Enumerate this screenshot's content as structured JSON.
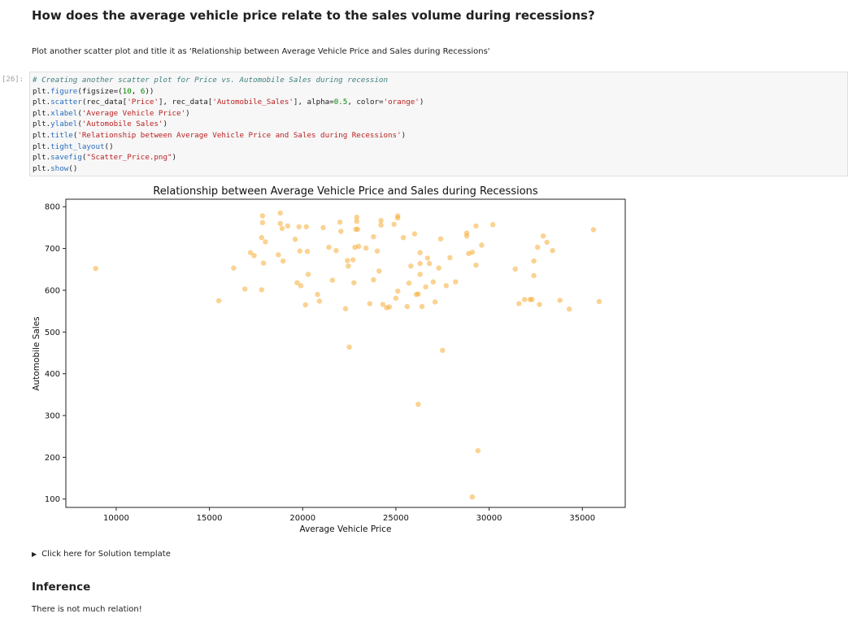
{
  "question": "How does the average vehicle price relate to the sales volume during recessions?",
  "instruction": "Plot another scatter plot and title it as 'Relationship between Average Vehicle Price and Sales during Recessions'",
  "cell_prompt": "[26]:",
  "code_lines": [
    [
      [
        "c-com",
        "# Creating another scatter plot for Price vs. Automobile Sales during recession"
      ]
    ],
    [
      [
        "",
        "plt."
      ],
      [
        "c-fn",
        "figure"
      ],
      [
        "",
        "(figsize=("
      ],
      [
        "c-num",
        "10"
      ],
      [
        "",
        ", "
      ],
      [
        "c-num",
        "6"
      ],
      [
        "",
        "))"
      ]
    ],
    [
      [
        "",
        "plt."
      ],
      [
        "c-fn",
        "scatter"
      ],
      [
        "",
        "(rec_data["
      ],
      [
        "c-str",
        "'Price'"
      ],
      [
        "",
        "], rec_data["
      ],
      [
        "c-str",
        "'Automobile_Sales'"
      ],
      [
        "",
        "], alpha="
      ],
      [
        "c-num",
        "0.5"
      ],
      [
        "",
        ", color="
      ],
      [
        "c-str",
        "'orange'"
      ],
      [
        "",
        ")"
      ]
    ],
    [
      [
        "",
        "plt."
      ],
      [
        "c-fn",
        "xlabel"
      ],
      [
        "",
        "("
      ],
      [
        "c-str",
        "'Average Vehicle Price'"
      ],
      [
        "",
        ")"
      ]
    ],
    [
      [
        "",
        "plt."
      ],
      [
        "c-fn",
        "ylabel"
      ],
      [
        "",
        "("
      ],
      [
        "c-str",
        "'Automobile Sales'"
      ],
      [
        "",
        ")"
      ]
    ],
    [
      [
        "",
        "plt."
      ],
      [
        "c-fn",
        "title"
      ],
      [
        "",
        "("
      ],
      [
        "c-str",
        "'Relationship between Average Vehicle Price and Sales during Recessions'"
      ],
      [
        "",
        ")"
      ]
    ],
    [
      [
        "",
        "plt."
      ],
      [
        "c-fn",
        "tight_layout"
      ],
      [
        "",
        "()"
      ]
    ],
    [
      [
        "",
        "plt."
      ],
      [
        "c-fn",
        "savefig"
      ],
      [
        "",
        "("
      ],
      [
        "c-str",
        "\"Scatter_Price.png\""
      ],
      [
        "",
        ")"
      ]
    ],
    [
      [
        "",
        "plt."
      ],
      [
        "c-fn",
        "show"
      ],
      [
        "",
        "()"
      ]
    ]
  ],
  "chart_data": {
    "type": "scatter",
    "title": "Relationship between Average Vehicle Price and Sales during Recessions",
    "xlabel": "Average Vehicle Price",
    "ylabel": "Automobile Sales",
    "xlim": [
      7300,
      37300
    ],
    "ylim": [
      80,
      818
    ],
    "x_ticks": [
      10000,
      15000,
      20000,
      25000,
      30000,
      35000
    ],
    "y_ticks": [
      100,
      200,
      300,
      400,
      500,
      600,
      700,
      800
    ],
    "color": "#f5a623",
    "alpha": 0.5,
    "points": [
      [
        8900,
        652
      ],
      [
        15500,
        575
      ],
      [
        16300,
        653
      ],
      [
        16900,
        603
      ],
      [
        17200,
        690
      ],
      [
        17400,
        683
      ],
      [
        17800,
        726
      ],
      [
        17800,
        601
      ],
      [
        17850,
        778
      ],
      [
        17850,
        762
      ],
      [
        17900,
        665
      ],
      [
        18000,
        716
      ],
      [
        18700,
        685
      ],
      [
        18800,
        785
      ],
      [
        18800,
        760
      ],
      [
        18900,
        748
      ],
      [
        18950,
        670
      ],
      [
        19200,
        754
      ],
      [
        19600,
        722
      ],
      [
        19700,
        618
      ],
      [
        19900,
        611
      ],
      [
        19800,
        752
      ],
      [
        19850,
        694
      ],
      [
        20150,
        565
      ],
      [
        20200,
        752
      ],
      [
        20250,
        693
      ],
      [
        20300,
        638
      ],
      [
        20800,
        590
      ],
      [
        20900,
        574
      ],
      [
        21100,
        750
      ],
      [
        21400,
        703
      ],
      [
        21600,
        624
      ],
      [
        21800,
        695
      ],
      [
        22000,
        763
      ],
      [
        22050,
        741
      ],
      [
        22300,
        556
      ],
      [
        22400,
        671
      ],
      [
        22450,
        658
      ],
      [
        22500,
        464
      ],
      [
        22700,
        673
      ],
      [
        22750,
        618
      ],
      [
        22800,
        703
      ],
      [
        22900,
        775
      ],
      [
        22900,
        765
      ],
      [
        22850,
        746
      ],
      [
        22950,
        746
      ],
      [
        23000,
        705
      ],
      [
        23400,
        701
      ],
      [
        23600,
        568
      ],
      [
        23800,
        728
      ],
      [
        23800,
        625
      ],
      [
        24000,
        694
      ],
      [
        24200,
        767
      ],
      [
        24200,
        756
      ],
      [
        24100,
        646
      ],
      [
        24300,
        566
      ],
      [
        24500,
        558
      ],
      [
        24650,
        560
      ],
      [
        24900,
        758
      ],
      [
        25100,
        778
      ],
      [
        25100,
        773
      ],
      [
        25100,
        598
      ],
      [
        25000,
        581
      ],
      [
        25400,
        726
      ],
      [
        25600,
        561
      ],
      [
        25700,
        617
      ],
      [
        25800,
        658
      ],
      [
        26000,
        735
      ],
      [
        26100,
        590
      ],
      [
        26200,
        591
      ],
      [
        26200,
        327
      ],
      [
        26300,
        690
      ],
      [
        26300,
        664
      ],
      [
        26300,
        638
      ],
      [
        26400,
        561
      ],
      [
        26600,
        608
      ],
      [
        26700,
        677
      ],
      [
        26800,
        664
      ],
      [
        27000,
        620
      ],
      [
        27100,
        572
      ],
      [
        27300,
        653
      ],
      [
        27400,
        723
      ],
      [
        27500,
        456
      ],
      [
        27700,
        611
      ],
      [
        27900,
        678
      ],
      [
        28200,
        620
      ],
      [
        28800,
        737
      ],
      [
        28800,
        730
      ],
      [
        28900,
        688
      ],
      [
        29100,
        691
      ],
      [
        29100,
        105
      ],
      [
        29300,
        754
      ],
      [
        29300,
        660
      ],
      [
        29400,
        216
      ],
      [
        29600,
        708
      ],
      [
        30200,
        757
      ],
      [
        31400,
        651
      ],
      [
        31600,
        568
      ],
      [
        31900,
        578
      ],
      [
        32200,
        578
      ],
      [
        32300,
        578
      ],
      [
        32400,
        670
      ],
      [
        32400,
        635
      ],
      [
        32600,
        703
      ],
      [
        32700,
        566
      ],
      [
        32900,
        730
      ],
      [
        33100,
        715
      ],
      [
        33400,
        695
      ],
      [
        33800,
        576
      ],
      [
        34300,
        555
      ],
      [
        35600,
        745
      ],
      [
        35900,
        573
      ]
    ]
  },
  "solution_template_label": "Click here for Solution template",
  "inference_heading": "Inference",
  "inference_text": "There is not much relation!"
}
